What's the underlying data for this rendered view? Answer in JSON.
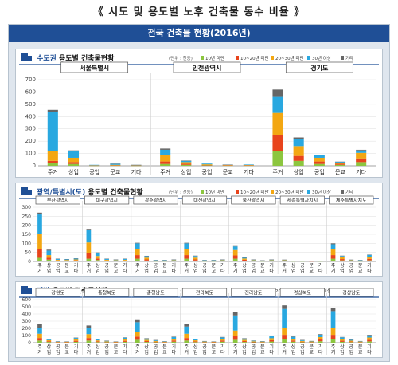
{
  "page_title": "《 시도 및 용도별 노후 건축물 동수 비율 》",
  "banner_title": "전국 건축물 현황(2016년)",
  "legend_colors": [
    "#8cc63f",
    "#e8441c",
    "#f3a712",
    "#29a8e0",
    "#666666"
  ],
  "legend_labels": [
    "10년 미만",
    "10~20년 미만",
    "20~30년 미만",
    "30년 이상",
    "기타"
  ],
  "unit_label": "(단위 : 천동)",
  "chart_data": [
    {
      "type": "bar",
      "stacked": true,
      "title_prefix": "수도권",
      "title_suffix": " 용도별 건축물현황",
      "ylim": [
        0,
        700
      ],
      "yticks": [
        "0",
        "100",
        "200",
        "300",
        "400",
        "500",
        "600",
        "700"
      ],
      "category_labels": [
        "주거",
        "상업",
        "공업",
        "문교",
        "기타"
      ],
      "groups": [
        {
          "name": "서울특별시",
          "values": [
            [
              20,
              20,
              80,
              320,
              15
            ],
            [
              15,
              15,
              35,
              55,
              5
            ],
            [
              1,
              1,
              2,
              4,
              0
            ],
            [
              2,
              2,
              4,
              8,
              2
            ],
            [
              1,
              1,
              2,
              3,
              1
            ]
          ]
        },
        {
          "name": "인천광역시",
          "values": [
            [
              15,
              20,
              55,
              40,
              10
            ],
            [
              8,
              8,
              14,
              10,
              3
            ],
            [
              3,
              3,
              6,
              6,
              0
            ],
            [
              2,
              2,
              3,
              2,
              1
            ],
            [
              2,
              2,
              3,
              4,
              0
            ]
          ]
        },
        {
          "name": "경기도",
          "values": [
            [
              120,
              130,
              180,
              130,
              60
            ],
            [
              40,
              40,
              80,
              60,
              10
            ],
            [
              15,
              20,
              30,
              20,
              5
            ],
            [
              8,
              8,
              10,
              6,
              2
            ],
            [
              30,
              30,
              45,
              20,
              5
            ]
          ]
        }
      ]
    },
    {
      "type": "bar",
      "stacked": true,
      "title_prefix": "광역/특별시(도)",
      "title_suffix": " 용도별 건축물현황",
      "ylim": [
        0,
        300
      ],
      "yticks": [
        "0",
        "50",
        "100",
        "150",
        "200",
        "250",
        "300"
      ],
      "category_labels": [
        "주거",
        "상업",
        "공업",
        "문교",
        "기타"
      ],
      "groups": [
        {
          "name": "부산광역시",
          "values": [
            [
              20,
              50,
              80,
              110,
              10
            ],
            [
              10,
              10,
              15,
              25,
              5
            ],
            [
              2,
              3,
              4,
              5,
              1
            ],
            [
              2,
              2,
              4,
              4,
              1
            ],
            [
              3,
              3,
              5,
              5,
              1
            ]
          ]
        },
        {
          "name": "대구광역시",
          "values": [
            [
              15,
              30,
              60,
              70,
              5
            ],
            [
              8,
              8,
              14,
              16,
              4
            ],
            [
              2,
              3,
              4,
              5,
              1
            ],
            [
              2,
              2,
              3,
              3,
              1
            ],
            [
              2,
              3,
              4,
              5,
              1
            ]
          ]
        },
        {
          "name": "광주광역시",
          "values": [
            [
              15,
              20,
              35,
              30,
              3
            ],
            [
              5,
              6,
              10,
              8,
              2
            ],
            [
              1,
              2,
              2,
              2,
              1
            ],
            [
              1,
              2,
              2,
              2,
              1
            ],
            [
              2,
              2,
              3,
              3,
              1
            ]
          ]
        },
        {
          "name": "대전광역시",
          "values": [
            [
              15,
              20,
              35,
              30,
              3
            ],
            [
              5,
              6,
              10,
              9,
              2
            ],
            [
              1,
              2,
              2,
              2,
              1
            ],
            [
              1,
              2,
              2,
              2,
              1
            ],
            [
              2,
              2,
              3,
              3,
              1
            ]
          ]
        },
        {
          "name": "울산광역시",
          "values": [
            [
              15,
              18,
              30,
              20,
              2
            ],
            [
              4,
              5,
              7,
              5,
              1
            ],
            [
              2,
              2,
              3,
              3,
              1
            ],
            [
              1,
              1,
              2,
              1,
              1
            ],
            [
              2,
              2,
              3,
              3,
              1
            ]
          ]
        },
        {
          "name": "세종특별자치시",
          "values": [
            [
              2,
              2,
              3,
              2,
              1
            ],
            [
              1,
              1,
              1,
              1,
              0
            ],
            [
              1,
              1,
              1,
              1,
              0
            ],
            [
              0,
              1,
              1,
              0,
              0
            ],
            [
              1,
              1,
              1,
              1,
              0
            ]
          ]
        },
        {
          "name": "제주특별자치도",
          "values": [
            [
              15,
              20,
              35,
              25,
              5
            ],
            [
              6,
              7,
              10,
              7,
              2
            ],
            [
              2,
              2,
              3,
              2,
              1
            ],
            [
              1,
              2,
              2,
              2,
              1
            ],
            [
              6,
              8,
              12,
              10,
              2
            ]
          ]
        }
      ]
    },
    {
      "type": "bar",
      "stacked": true,
      "title_prefix": "지방",
      "title_suffix": " 용도별 건축물현황",
      "ylim": [
        0,
        600
      ],
      "yticks": [
        "0",
        "100",
        "200",
        "300",
        "400",
        "500",
        "600"
      ],
      "category_labels": [
        "주거",
        "상업",
        "공업",
        "문교",
        "기타"
      ],
      "groups": [
        {
          "name": "강원도",
          "values": [
            [
              30,
              35,
              60,
              80,
              60
            ],
            [
              10,
              10,
              15,
              15,
              5
            ],
            [
              3,
              4,
              5,
              5,
              2
            ],
            [
              3,
              3,
              5,
              4,
              2
            ],
            [
              12,
              14,
              20,
              20,
              5
            ]
          ]
        },
        {
          "name": "충청북도",
          "values": [
            [
              30,
              35,
              55,
              90,
              30
            ],
            [
              8,
              10,
              14,
              18,
              4
            ],
            [
              5,
              5,
              8,
              8,
              2
            ],
            [
              3,
              3,
              5,
              4,
              1
            ],
            [
              12,
              14,
              20,
              24,
              5
            ]
          ]
        },
        {
          "name": "충청남도",
          "values": [
            [
              40,
              45,
              70,
              130,
              40
            ],
            [
              10,
              12,
              18,
              18,
              5
            ],
            [
              6,
              8,
              10,
              10,
              3
            ],
            [
              3,
              4,
              6,
              5,
              2
            ],
            [
              14,
              16,
              25,
              24,
              6
            ]
          ]
        },
        {
          "name": "전라북도",
          "values": [
            [
              30,
              35,
              60,
              100,
              40
            ],
            [
              8,
              10,
              15,
              15,
              4
            ],
            [
              4,
              5,
              6,
              6,
              2
            ],
            [
              3,
              3,
              5,
              4,
              2
            ],
            [
              14,
              16,
              22,
              22,
              6
            ]
          ]
        },
        {
          "name": "전라남도",
          "values": [
            [
              40,
              50,
              80,
              210,
              50
            ],
            [
              10,
              12,
              18,
              18,
              5
            ],
            [
              5,
              6,
              8,
              8,
              3
            ],
            [
              4,
              4,
              6,
              5,
              2
            ],
            [
              16,
              18,
              28,
              28,
              8
            ]
          ]
        },
        {
          "name": "경상북도",
          "values": [
            [
              50,
              60,
              100,
              260,
              50
            ],
            [
              14,
              16,
              24,
              28,
              6
            ],
            [
              6,
              8,
              10,
              10,
              4
            ],
            [
              4,
              5,
              7,
              6,
              2
            ],
            [
              20,
              24,
              34,
              34,
              8
            ]
          ]
        },
        {
          "name": "경상남도",
          "values": [
            [
              50,
              60,
              100,
              230,
              40
            ],
            [
              12,
              15,
              22,
              26,
              5
            ],
            [
              7,
              9,
              12,
              12,
              3
            ],
            [
              4,
              4,
              7,
              6,
              2
            ],
            [
              18,
              22,
              32,
              30,
              8
            ]
          ]
        }
      ]
    }
  ]
}
